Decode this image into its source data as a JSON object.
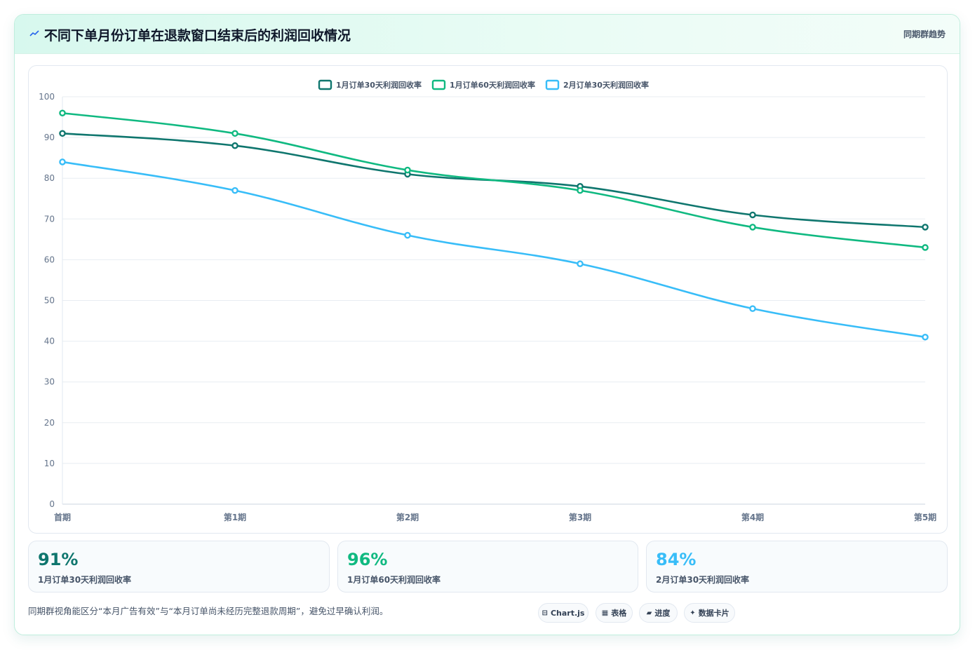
{
  "header": {
    "title": "不同下单月份订单在退款窗口结束后的利润回收情况",
    "icon": "trend-icon",
    "tag": "同期群趋势"
  },
  "chart_data": {
    "type": "line",
    "title": "",
    "xlabel": "",
    "ylabel": "",
    "categories": [
      "首期",
      "第1期",
      "第2期",
      "第3期",
      "第4期",
      "第5期"
    ],
    "ylim": [
      0,
      100
    ],
    "yticks": [
      "0",
      "10",
      "20",
      "30",
      "40",
      "50",
      "60",
      "70",
      "80",
      "90",
      "100"
    ],
    "legend_position": "top",
    "grid": true,
    "series": [
      {
        "name": "1月订单30天利润回收率",
        "color": "#0f766e",
        "values": [
          91,
          88,
          81,
          78,
          71,
          68
        ]
      },
      {
        "name": "1月订单60天利润回收率",
        "color": "#10b981",
        "values": [
          96,
          91,
          82,
          77,
          68,
          63
        ]
      },
      {
        "name": "2月订单30天利润回收率",
        "color": "#38bdf8",
        "values": [
          84,
          77,
          66,
          59,
          48,
          41
        ]
      }
    ]
  },
  "stats": [
    {
      "value": "91%",
      "label": "1月订单30天利润回收率",
      "color": "#0f766e"
    },
    {
      "value": "96%",
      "label": "1月订单60天利润回收率",
      "color": "#10b981"
    },
    {
      "value": "84%",
      "label": "2月订单30天利润回收率",
      "color": "#38bdf8"
    }
  ],
  "footer": {
    "note": "同期群视角能区分“本月广告有效”与“本月订单尚未经历完整退款周期”，避免过早确认利润。",
    "pills": [
      {
        "icon": "⊟",
        "label": "Chart.js"
      },
      {
        "icon": "▦",
        "label": "表格"
      },
      {
        "icon": "▰",
        "label": "进度"
      },
      {
        "icon": "✦",
        "label": "数据卡片"
      }
    ]
  }
}
